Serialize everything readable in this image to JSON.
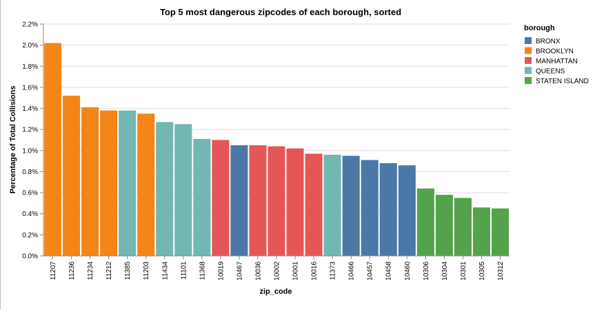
{
  "chart_data": {
    "type": "bar",
    "title": "Top 5 most dangerous zipcodes of each borough, sorted",
    "xlabel": "zip_code",
    "ylabel": "Percentage of Total Collisions",
    "ylim": [
      0,
      2.2
    ],
    "y_ticks": [
      "0.0%",
      "0.2%",
      "0.4%",
      "0.6%",
      "0.8%",
      "1.0%",
      "1.2%",
      "1.4%",
      "1.6%",
      "1.8%",
      "2.0%",
      "2.2%"
    ],
    "grid": true,
    "legend_title": "borough",
    "legend_position": "right",
    "series": [
      {
        "name": "BRONX",
        "color": "#4c78a8"
      },
      {
        "name": "BROOKLYN",
        "color": "#f58518"
      },
      {
        "name": "MANHATTAN",
        "color": "#e45756"
      },
      {
        "name": "QUEENS",
        "color": "#72b7b2"
      },
      {
        "name": "STATEN ISLAND",
        "color": "#54a24b"
      }
    ],
    "categories": [
      "11207",
      "11236",
      "11234",
      "11212",
      "11385",
      "11203",
      "11434",
      "11101",
      "11368",
      "10019",
      "10467",
      "10036",
      "10002",
      "10001",
      "10016",
      "11373",
      "10466",
      "10457",
      "10458",
      "10460",
      "10306",
      "10304",
      "10301",
      "10305",
      "10312"
    ],
    "values": [
      2.02,
      1.52,
      1.41,
      1.38,
      1.38,
      1.35,
      1.27,
      1.25,
      1.11,
      1.1,
      1.05,
      1.05,
      1.04,
      1.02,
      0.97,
      0.96,
      0.95,
      0.91,
      0.88,
      0.86,
      0.64,
      0.58,
      0.55,
      0.46,
      0.45
    ],
    "borough": [
      "BROOKLYN",
      "BROOKLYN",
      "BROOKLYN",
      "BROOKLYN",
      "QUEENS",
      "BROOKLYN",
      "QUEENS",
      "QUEENS",
      "QUEENS",
      "MANHATTAN",
      "BRONX",
      "MANHATTAN",
      "MANHATTAN",
      "MANHATTAN",
      "MANHATTAN",
      "QUEENS",
      "BRONX",
      "BRONX",
      "BRONX",
      "BRONX",
      "STATEN ISLAND",
      "STATEN ISLAND",
      "STATEN ISLAND",
      "STATEN ISLAND",
      "STATEN ISLAND"
    ]
  }
}
